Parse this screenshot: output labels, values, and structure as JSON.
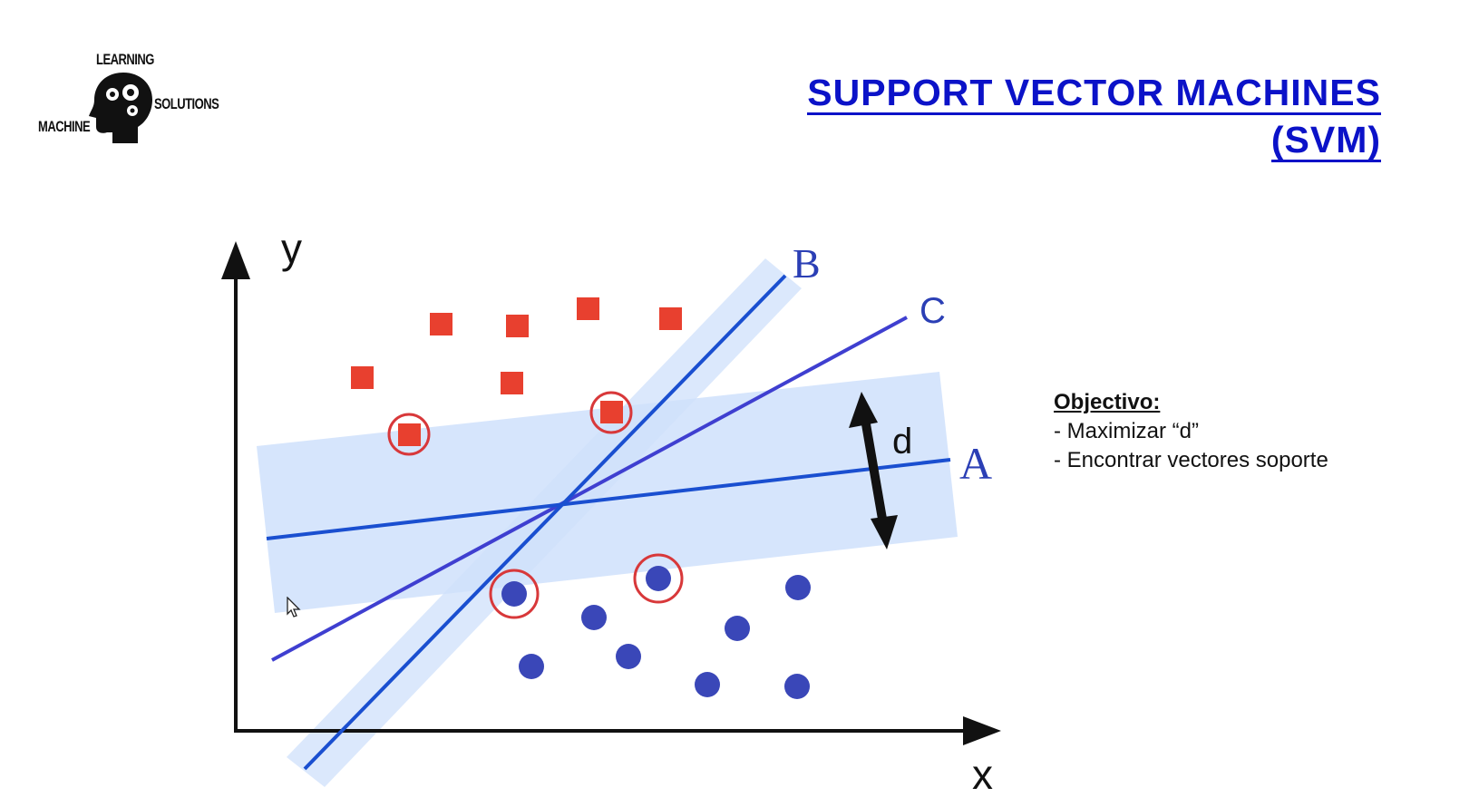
{
  "logo": {
    "top_word": "LEARNING",
    "left_word": "MACHINE",
    "right_word": "SOLUTIONS",
    "icon": "head-gears-icon"
  },
  "title": {
    "line1": "SUPPORT VECTOR MACHINES",
    "line2": "(SVM)"
  },
  "diagram": {
    "axis_x_label": "x",
    "axis_y_label": "y",
    "line_labels": {
      "a": "A",
      "b": "B",
      "c": "C"
    },
    "margin_label": "d",
    "colors": {
      "square": "#e8402f",
      "circle": "#3a47b8",
      "support_ring": "#d8383a",
      "line_a": "#1a4fd0",
      "line_b": "#1a4fd0",
      "line_c": "#3f3fd0",
      "band": "#cfe0fb",
      "axis": "#111111"
    }
  },
  "info": {
    "heading": "Objectivo:",
    "items": [
      "- Maximizar “d”",
      "- Encontrar vectores soporte"
    ]
  },
  "cursor": {
    "icon": "mouse-pointer-icon"
  }
}
